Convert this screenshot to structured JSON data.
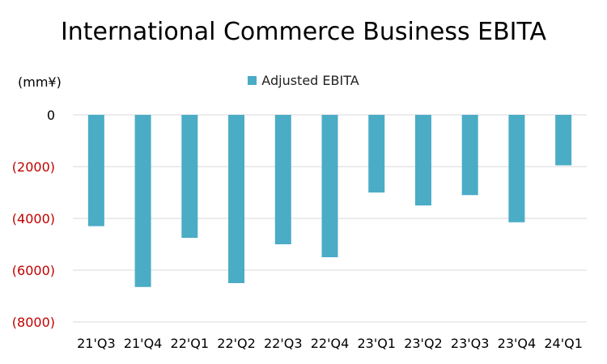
{
  "chart_data": {
    "type": "bar",
    "title": "International Commerce Business EBITA",
    "unit_label": "(mm¥)",
    "xlabel": "",
    "ylabel": "",
    "categories": [
      "21'Q3",
      "21'Q4",
      "22'Q1",
      "22'Q2",
      "22'Q3",
      "22'Q4",
      "23'Q1",
      "23'Q2",
      "23'Q3",
      "23'Q4",
      "24'Q1"
    ],
    "series": [
      {
        "name": "Adjusted EBITA",
        "color": "#4BACC6",
        "values": [
          -4300,
          -6650,
          -4750,
          -6500,
          -5000,
          -5500,
          -3000,
          -3500,
          -3100,
          -4150,
          -1950
        ]
      }
    ],
    "ylim": [
      -8000,
      0
    ],
    "yticks": [
      {
        "value": 0,
        "label": "0",
        "color": "#000000"
      },
      {
        "value": -2000,
        "label": "(2000)",
        "color": "#C00000"
      },
      {
        "value": -4000,
        "label": "(4000)",
        "color": "#C00000"
      },
      {
        "value": -6000,
        "label": "(6000)",
        "color": "#C00000"
      },
      {
        "value": -8000,
        "label": "(8000)",
        "color": "#C00000"
      }
    ],
    "grid": true,
    "gridline_color": "#D9D9D9",
    "legend_position": "top-center"
  }
}
